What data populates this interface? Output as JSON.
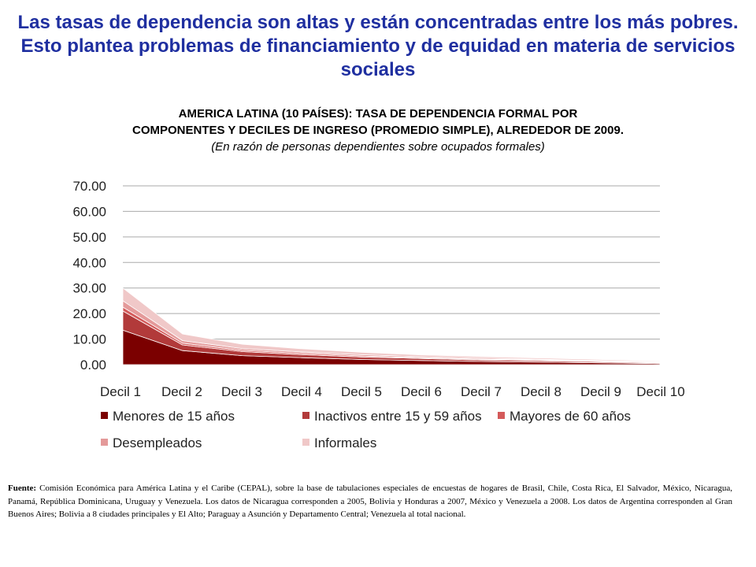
{
  "headline": "Las tasas de dependencia son altas y están concentradas entre los más pobres. Esto plantea problemas de financiamiento y de equidad en materia de servicios sociales",
  "chart_data": {
    "type": "area",
    "stacked": true,
    "title_line1": "AMERICA LATINA (10 PAÍSES): TASA DE DEPENDENCIA FORMAL POR",
    "title_line2": "COMPONENTES Y DECILES DE INGRESO (PROMEDIO SIMPLE), ALREDEDOR DE 2009.",
    "subtitle": "(En razón de personas dependientes sobre ocupados formales)",
    "categories": [
      "Decil 1",
      "Decil 2",
      "Decil 3",
      "Decil 4",
      "Decil 5",
      "Decil 6",
      "Decil 7",
      "Decil 8",
      "Decil 9",
      "Decil 10"
    ],
    "y_ticks": [
      "70.00",
      "60.00",
      "50.00",
      "40.00",
      "30.00",
      "20.00",
      "10.00",
      "0.00"
    ],
    "ylim": [
      0,
      70
    ],
    "grid": true,
    "legend_position": "bottom",
    "series": [
      {
        "name": "Menores de 15 años",
        "color": "#7B0000",
        "values": [
          13.5,
          5.5,
          3.5,
          2.7,
          2.0,
          1.6,
          1.2,
          1.0,
          0.7,
          0.4
        ]
      },
      {
        "name": "Inactivos entre 15 y 59 años",
        "color": "#B23A3A",
        "values": [
          7.5,
          2.2,
          1.6,
          1.2,
          1.0,
          0.8,
          0.6,
          0.5,
          0.4,
          0.3
        ]
      },
      {
        "name": "Mayores de 60 años",
        "color": "#D45A5A",
        "values": [
          1.5,
          0.7,
          0.5,
          0.5,
          0.4,
          0.3,
          0.3,
          0.3,
          0.2,
          0.2
        ]
      },
      {
        "name": "Desempleados",
        "color": "#E49A9A",
        "values": [
          2.5,
          1.0,
          0.7,
          0.6,
          0.5,
          0.4,
          0.4,
          0.3,
          0.3,
          0.2
        ]
      },
      {
        "name": "Informales",
        "color": "#F0C8C8",
        "values": [
          5.0,
          2.6,
          1.7,
          1.2,
          0.9,
          0.7,
          0.6,
          0.5,
          0.4,
          0.3
        ]
      }
    ]
  },
  "source": {
    "label": "Fuente:",
    "text": "Comisión Económica para América Latina y el Caribe (CEPAL), sobre la base de tabulaciones especiales de encuestas de hogares de Brasil, Chile, Costa Rica, El Salvador, México, Nicaragua, Panamá, República Dominicana, Uruguay y Venezuela. Los datos de Nicaragua corresponden a 2005, Bolivia y Honduras a 2007, México y Venezuela a 2008. Los datos de Argentina corresponden al Gran Buenos Aires; Bolivia a 8 ciudades principales y El Alto; Paraguay a Asunción y Departamento Central; Venezuela al total nacional."
  }
}
